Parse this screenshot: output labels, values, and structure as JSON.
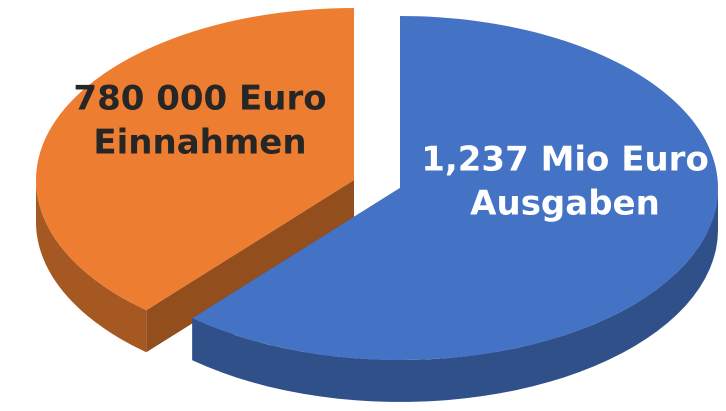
{
  "chart_data": {
    "type": "pie",
    "categories": [
      "Ausgaben",
      "Einnahmen"
    ],
    "values": [
      1237000,
      780000
    ],
    "value_labels": [
      "1,237 Mio Euro",
      "780 000 Euro"
    ],
    "colors": [
      "#4472c4",
      "#ed7d31"
    ],
    "text_colors": [
      "#ffffff",
      "#262626"
    ]
  }
}
